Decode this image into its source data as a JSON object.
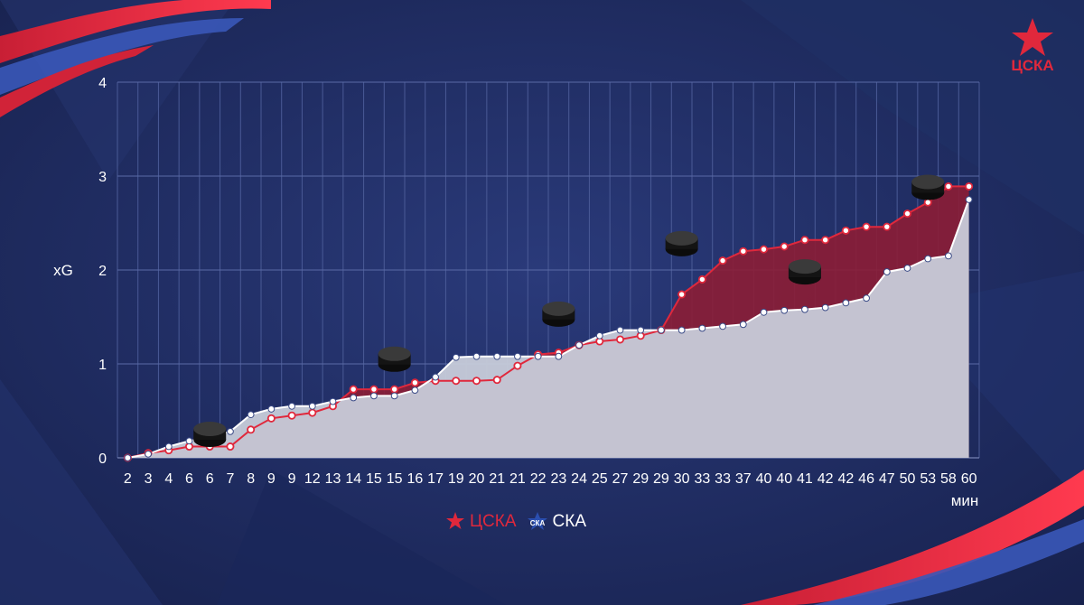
{
  "logo": {
    "text": "ЦСКА"
  },
  "legend": {
    "cska": "ЦСКА",
    "ska": "СКА",
    "ska_badge": "СКА"
  },
  "colors": {
    "cska": "#e0283c",
    "cska_fill": "#8c1d35",
    "ska": "#ffffff",
    "ska_fill": "#c7ccd9",
    "background": "#1d2a5e"
  },
  "chart_data": {
    "type": "area",
    "xlabel": "",
    "ylabel": "xG",
    "x_unit": "мин",
    "ylim": [
      0,
      4
    ],
    "yticks": [
      0,
      1,
      2,
      3,
      4
    ],
    "xlim": [
      0,
      60
    ],
    "x_tick_labels": [
      "2",
      "3",
      "4",
      "6",
      "6",
      "7",
      "8",
      "9",
      "9",
      "12",
      "13",
      "14",
      "15",
      "15",
      "16",
      "17",
      "19",
      "20",
      "21",
      "21",
      "22",
      "23",
      "24",
      "25",
      "27",
      "29",
      "29",
      "30",
      "33",
      "33",
      "37",
      "40",
      "40",
      "41",
      "42",
      "42",
      "46",
      "47",
      "50",
      "53",
      "58",
      "60"
    ],
    "grid": true,
    "legend_position": "bottom-center",
    "series": [
      {
        "name": "ЦСКА",
        "x": [
          0,
          1,
          2,
          3,
          4,
          5,
          6,
          7,
          8,
          9,
          10,
          11,
          12,
          13,
          14,
          15,
          16,
          17,
          18,
          19,
          20,
          21,
          22,
          23,
          24,
          25,
          26,
          27,
          28,
          29,
          30,
          31,
          32,
          33,
          34,
          35,
          36,
          37,
          38,
          39,
          40,
          41
        ],
        "y": [
          0,
          0.05,
          0.08,
          0.12,
          0.12,
          0.12,
          0.3,
          0.42,
          0.45,
          0.48,
          0.55,
          0.73,
          0.73,
          0.73,
          0.8,
          0.82,
          0.82,
          0.82,
          0.83,
          0.98,
          1.1,
          1.12,
          1.2,
          1.24,
          1.26,
          1.3,
          1.36,
          1.74,
          1.9,
          2.1,
          2.2,
          2.22,
          2.25,
          2.32,
          2.32,
          2.42,
          2.46,
          2.46,
          2.6,
          2.72,
          2.89,
          2.89
        ]
      },
      {
        "name": "СКА",
        "x": [
          0,
          1,
          2,
          3,
          4,
          5,
          6,
          7,
          8,
          9,
          10,
          11,
          12,
          13,
          14,
          15,
          16,
          17,
          18,
          19,
          20,
          21,
          22,
          23,
          24,
          25,
          26,
          27,
          28,
          29,
          30,
          31,
          32,
          33,
          34,
          35,
          36,
          37,
          38,
          39,
          40,
          41
        ],
        "y": [
          0,
          0.04,
          0.12,
          0.18,
          0.22,
          0.28,
          0.46,
          0.52,
          0.55,
          0.55,
          0.6,
          0.64,
          0.66,
          0.66,
          0.72,
          0.86,
          1.07,
          1.08,
          1.08,
          1.08,
          1.08,
          1.08,
          1.2,
          1.3,
          1.36,
          1.36,
          1.36,
          1.36,
          1.38,
          1.4,
          1.42,
          1.55,
          1.57,
          1.58,
          1.6,
          1.65,
          1.7,
          1.98,
          2.02,
          2.12,
          2.15,
          2.75
        ]
      }
    ],
    "goals": [
      {
        "x": 4,
        "y": 0.25
      },
      {
        "x": 13,
        "y": 1.05
      },
      {
        "x": 21,
        "y": 1.53
      },
      {
        "x": 27,
        "y": 2.28
      },
      {
        "x": 33,
        "y": 1.98
      },
      {
        "x": 39,
        "y": 2.88
      }
    ]
  }
}
